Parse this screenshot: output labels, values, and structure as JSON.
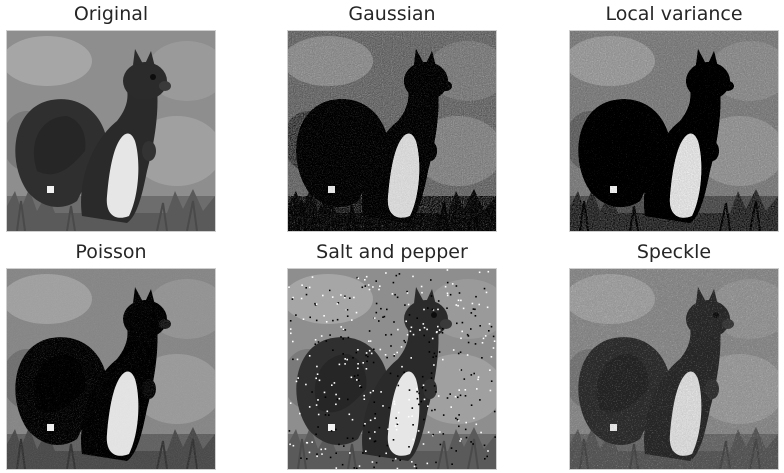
{
  "panels": [
    {
      "title": "Original",
      "noise": "none"
    },
    {
      "title": "Gaussian",
      "noise": "gaussian"
    },
    {
      "title": "Local variance",
      "noise": "localvar"
    },
    {
      "title": "Poisson",
      "noise": "poisson"
    },
    {
      "title": "Salt and pepper",
      "noise": "saltpepper"
    },
    {
      "title": "Speckle",
      "noise": "speckle"
    }
  ],
  "colors": {
    "background": "#ffffff",
    "title": "#262626"
  }
}
